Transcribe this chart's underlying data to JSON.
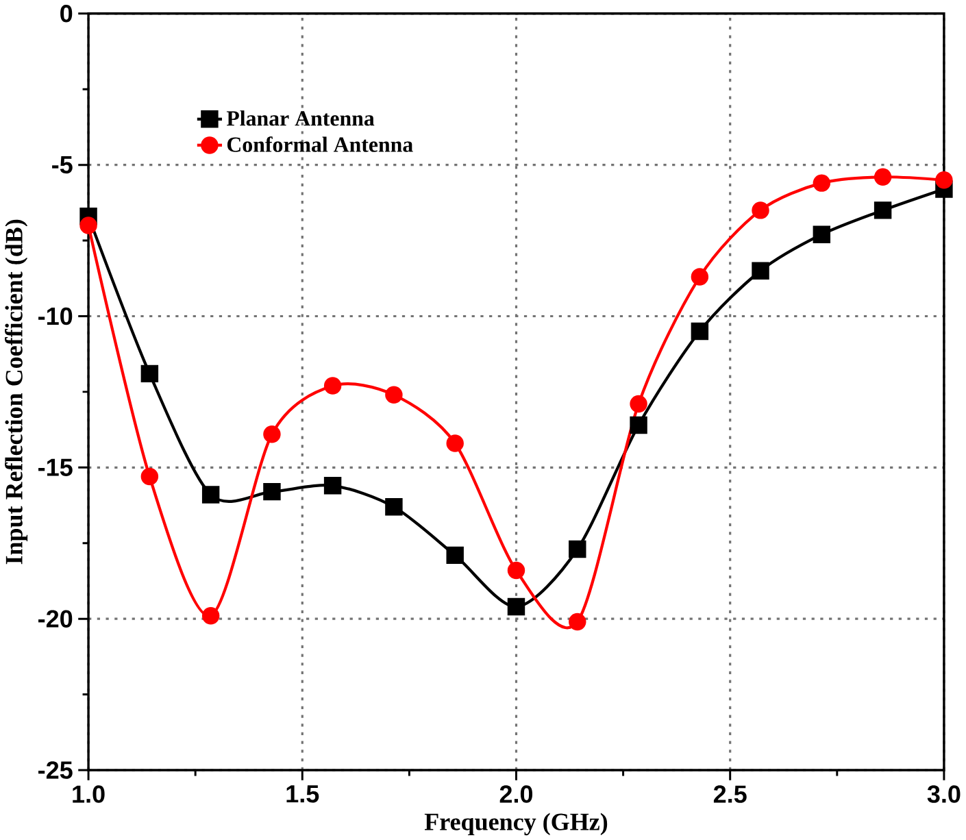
{
  "chart_data": {
    "type": "line",
    "xlabel": "Frequency (GHz)",
    "ylabel": "Input Reflection Coefficient (dB)",
    "x": [
      1.0,
      1.143,
      1.286,
      1.429,
      1.571,
      1.714,
      1.857,
      2.0,
      2.143,
      2.286,
      2.429,
      2.571,
      2.714,
      2.857,
      3.0
    ],
    "series": [
      {
        "name": "Planar Antenna",
        "color": "#000000",
        "marker": "square",
        "values": [
          -6.7,
          -11.9,
          -15.9,
          -15.8,
          -15.6,
          -16.3,
          -17.9,
          -19.6,
          -17.7,
          -13.6,
          -10.5,
          -8.5,
          -7.3,
          -6.5,
          -5.8
        ]
      },
      {
        "name": "Conformal Antenna",
        "color": "#ff0000",
        "marker": "circle",
        "values": [
          -7.0,
          -15.3,
          -19.9,
          -13.9,
          -12.3,
          -12.6,
          -14.2,
          -18.4,
          -20.1,
          -12.9,
          -8.7,
          -6.5,
          -5.6,
          -5.4,
          -5.5
        ]
      }
    ],
    "xlim": [
      1.0,
      3.0
    ],
    "ylim": [
      -25,
      0
    ],
    "xticks": [
      {
        "value": 1.0,
        "label": "1.0"
      },
      {
        "value": 1.5,
        "label": "1.5"
      },
      {
        "value": 2.0,
        "label": "2.0"
      },
      {
        "value": 2.5,
        "label": "2.5"
      },
      {
        "value": 3.0,
        "label": "3.0"
      }
    ],
    "yticks": [
      0,
      -5,
      -10,
      -15,
      -20,
      -25
    ],
    "grid": true,
    "legend": "top left",
    "line_style": "solid"
  }
}
